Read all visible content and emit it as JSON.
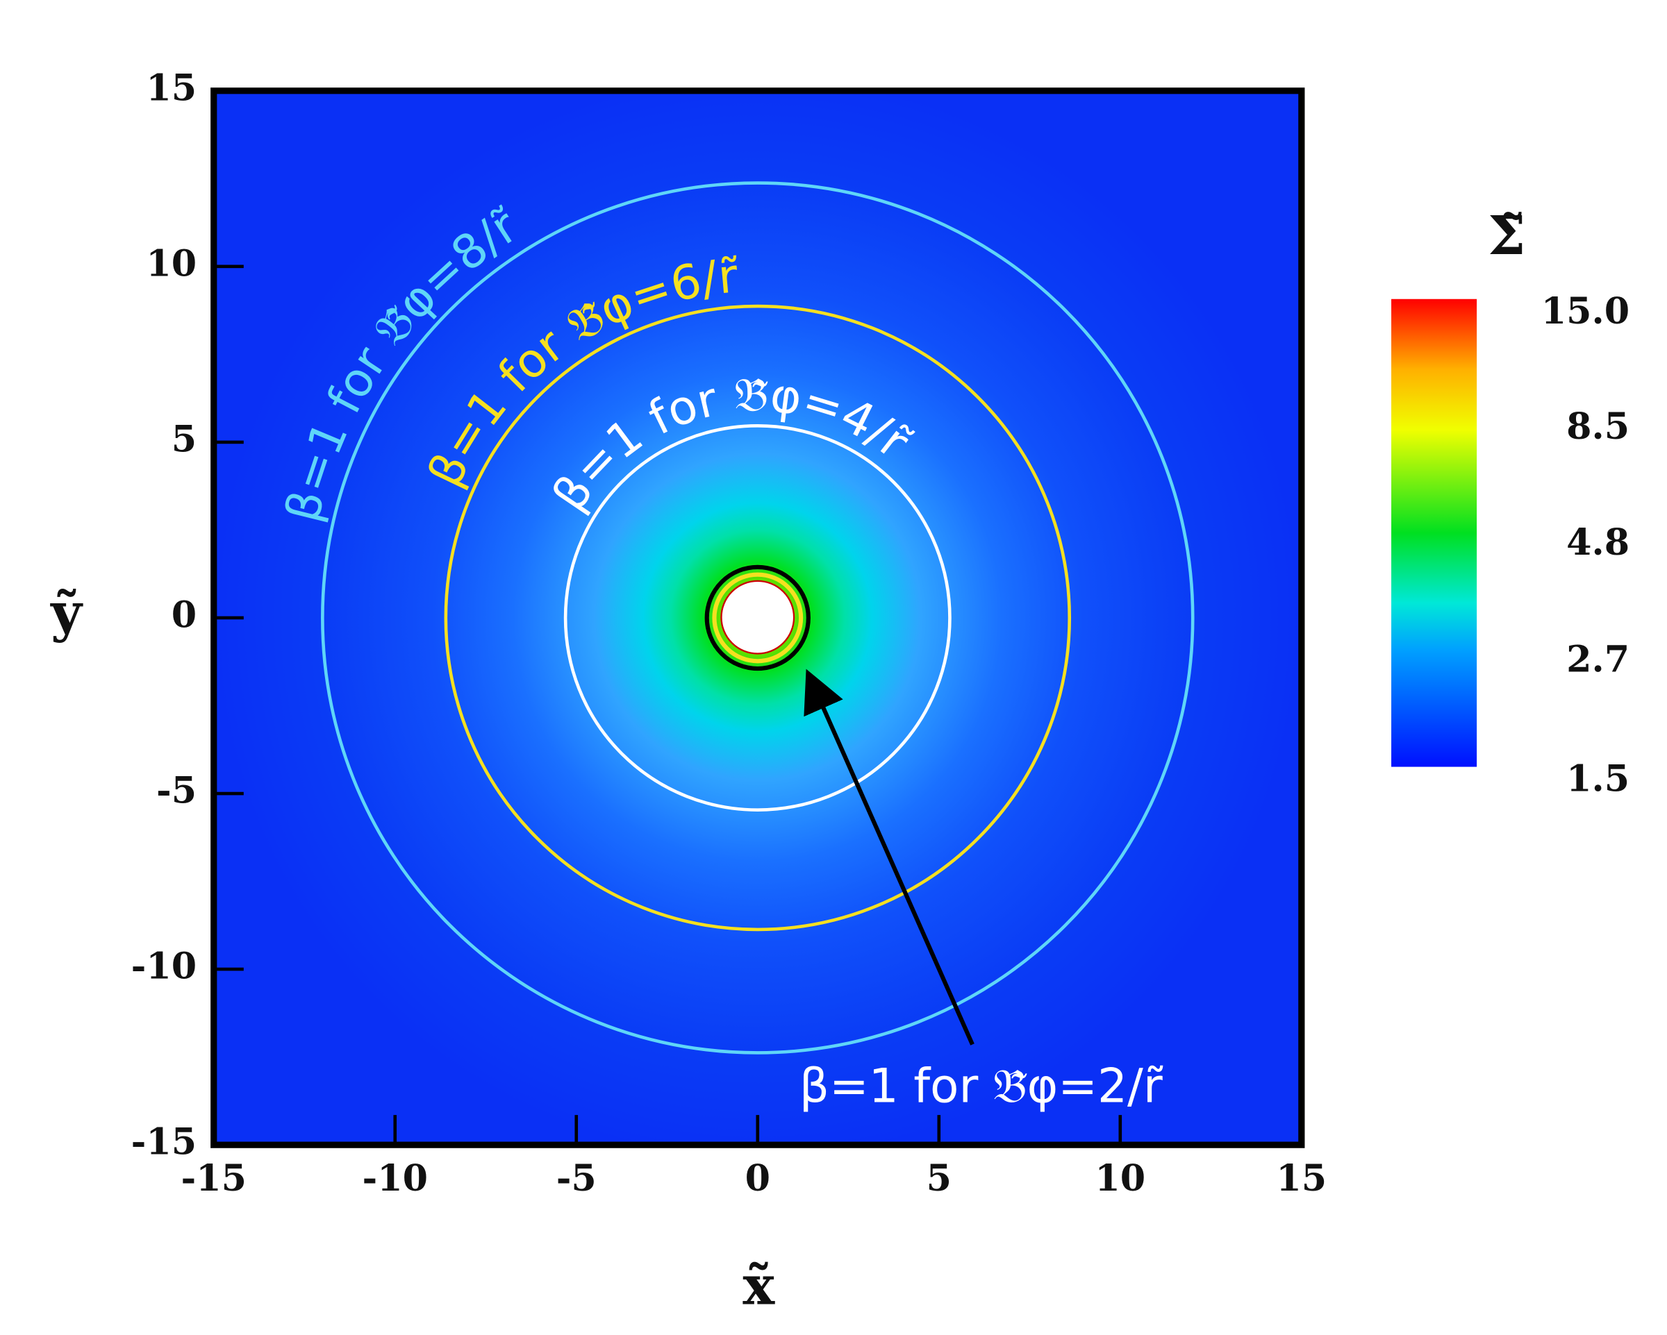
{
  "chart_data": {
    "type": "heatmap",
    "xlabel": "x̃",
    "ylabel": "ỹ",
    "xlim": [
      -15,
      15
    ],
    "ylim": [
      -15,
      15
    ],
    "xticks": [
      -15,
      -10,
      -5,
      0,
      5,
      10,
      15
    ],
    "yticks": [
      -15,
      -10,
      -5,
      0,
      5,
      10,
      15
    ],
    "colorbar": {
      "title": "Σ̃",
      "zlim": [
        1.5,
        15
      ],
      "log": true,
      "ticks": [
        {
          "value": 15,
          "label": "15.0"
        },
        8.5,
        4.8,
        2.7,
        1.5
      ]
    },
    "contours": [
      {
        "name": "β=1 for 𝔅̃φ=8/r̃",
        "color": "#5fd6f8",
        "radius": 12
      },
      {
        "name": "β=1 for 𝔅̃φ=6/r̃",
        "color": "#f5e020",
        "radius": 8.6
      },
      {
        "name": "β=1 for 𝔅̃φ=4/r̃",
        "color": "#ffffff",
        "radius": 5.3
      },
      {
        "name": "β=1 for 𝔅̃φ=2/r̃",
        "color": "#000000",
        "radius": 1.4
      }
    ]
  }
}
